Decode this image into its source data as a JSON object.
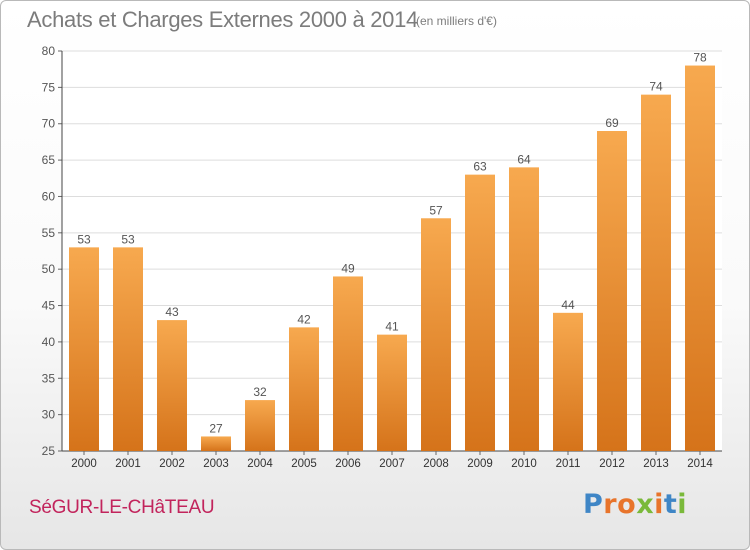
{
  "header": {
    "title": "Achats et Charges Externes 2000 à 2014",
    "subtitle": "(en milliers d'€)"
  },
  "footer": {
    "commune": "SéGUR-LE-CHâTEAU",
    "brand": {
      "text": "Proxiti",
      "colors": [
        "#3f86c6",
        "#e8742b",
        "#e8742b",
        "#7ab93a",
        "#e8742b",
        "#3f86c6",
        "#7ab93a"
      ]
    }
  },
  "colors": {
    "bar_light": "#f7a94f",
    "bar_dark": "#d5731a",
    "text": "#555555",
    "grid": "#dddddd"
  },
  "chart_data": {
    "type": "bar",
    "title": "Achats et Charges Externes 2000 à 2014",
    "subtitle": "(en milliers d'€)",
    "categories": [
      "2000",
      "2001",
      "2002",
      "2003",
      "2004",
      "2005",
      "2006",
      "2007",
      "2008",
      "2009",
      "2010",
      "2011",
      "2012",
      "2013",
      "2014"
    ],
    "values": [
      53,
      53,
      43,
      27,
      32,
      42,
      49,
      41,
      57,
      63,
      64,
      44,
      69,
      74,
      78
    ],
    "ylim": [
      25,
      80
    ],
    "yticks": [
      25,
      30,
      35,
      40,
      45,
      50,
      55,
      60,
      65,
      70,
      75,
      80
    ],
    "grid": true,
    "data_labels": true
  }
}
